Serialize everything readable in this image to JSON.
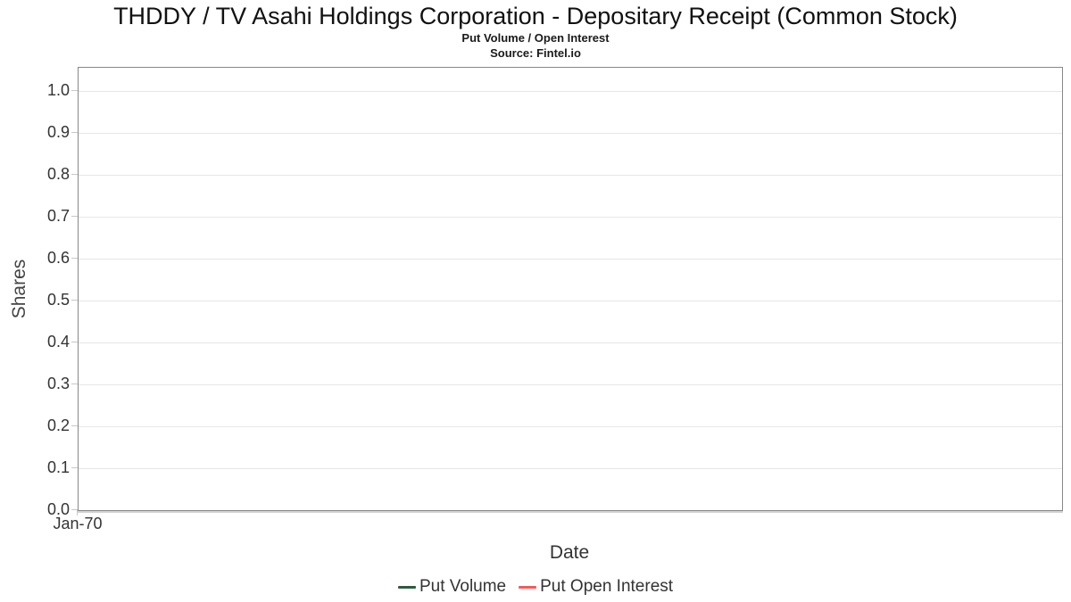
{
  "title": "THDDY / TV Asahi Holdings Corporation - Depositary Receipt (Common Stock)",
  "subtitle": "Put Volume / Open Interest",
  "source": "Source: Fintel.io",
  "chart_data": {
    "type": "line",
    "title": "THDDY / TV Asahi Holdings Corporation - Depositary Receipt (Common Stock)",
    "subtitle": "Put Volume / Open Interest",
    "source": "Source: Fintel.io",
    "xlabel": "Date",
    "ylabel": "Shares",
    "ylim": [
      0.0,
      1.0
    ],
    "y_tick_labels": [
      "1.0",
      "0.9",
      "0.8",
      "0.7",
      "0.6",
      "0.5",
      "0.4",
      "0.3",
      "0.2",
      "0.1",
      "0.0"
    ],
    "x_tick_labels": [
      "Jan-70"
    ],
    "grid": "horizontal gridlines only",
    "legend_position": "bottom center",
    "x": [],
    "series": [
      {
        "name": "Put Volume",
        "color": "#2e5c40",
        "values": []
      },
      {
        "name": "Put Open Interest",
        "color": "#f45b5b",
        "values": []
      }
    ]
  }
}
